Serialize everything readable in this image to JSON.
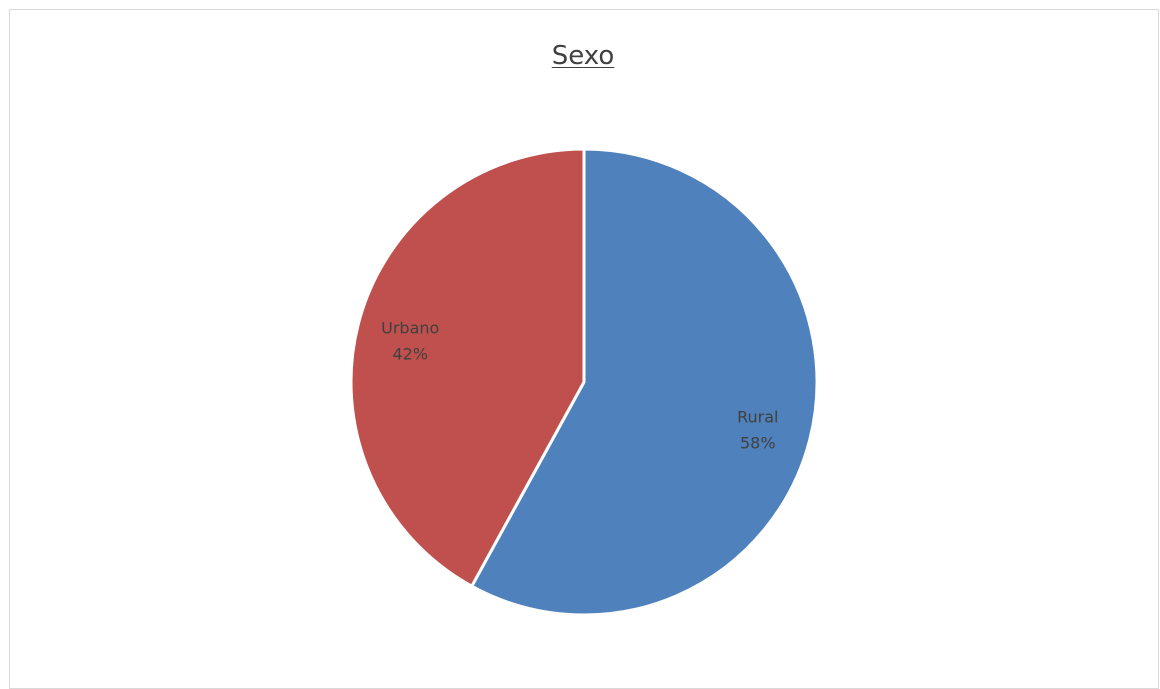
{
  "chart_data": {
    "type": "pie",
    "title": "Sexo",
    "slices": [
      {
        "label": "Rural",
        "value": 58,
        "value_label": "58%",
        "color": "#4f81bd"
      },
      {
        "label": "Urbano",
        "value": 42,
        "value_label": "42%",
        "color": "#c0504d"
      }
    ],
    "start_angle_deg": 0,
    "direction": "clockwise",
    "slice_border_color": "#ffffff",
    "legend": "none"
  }
}
